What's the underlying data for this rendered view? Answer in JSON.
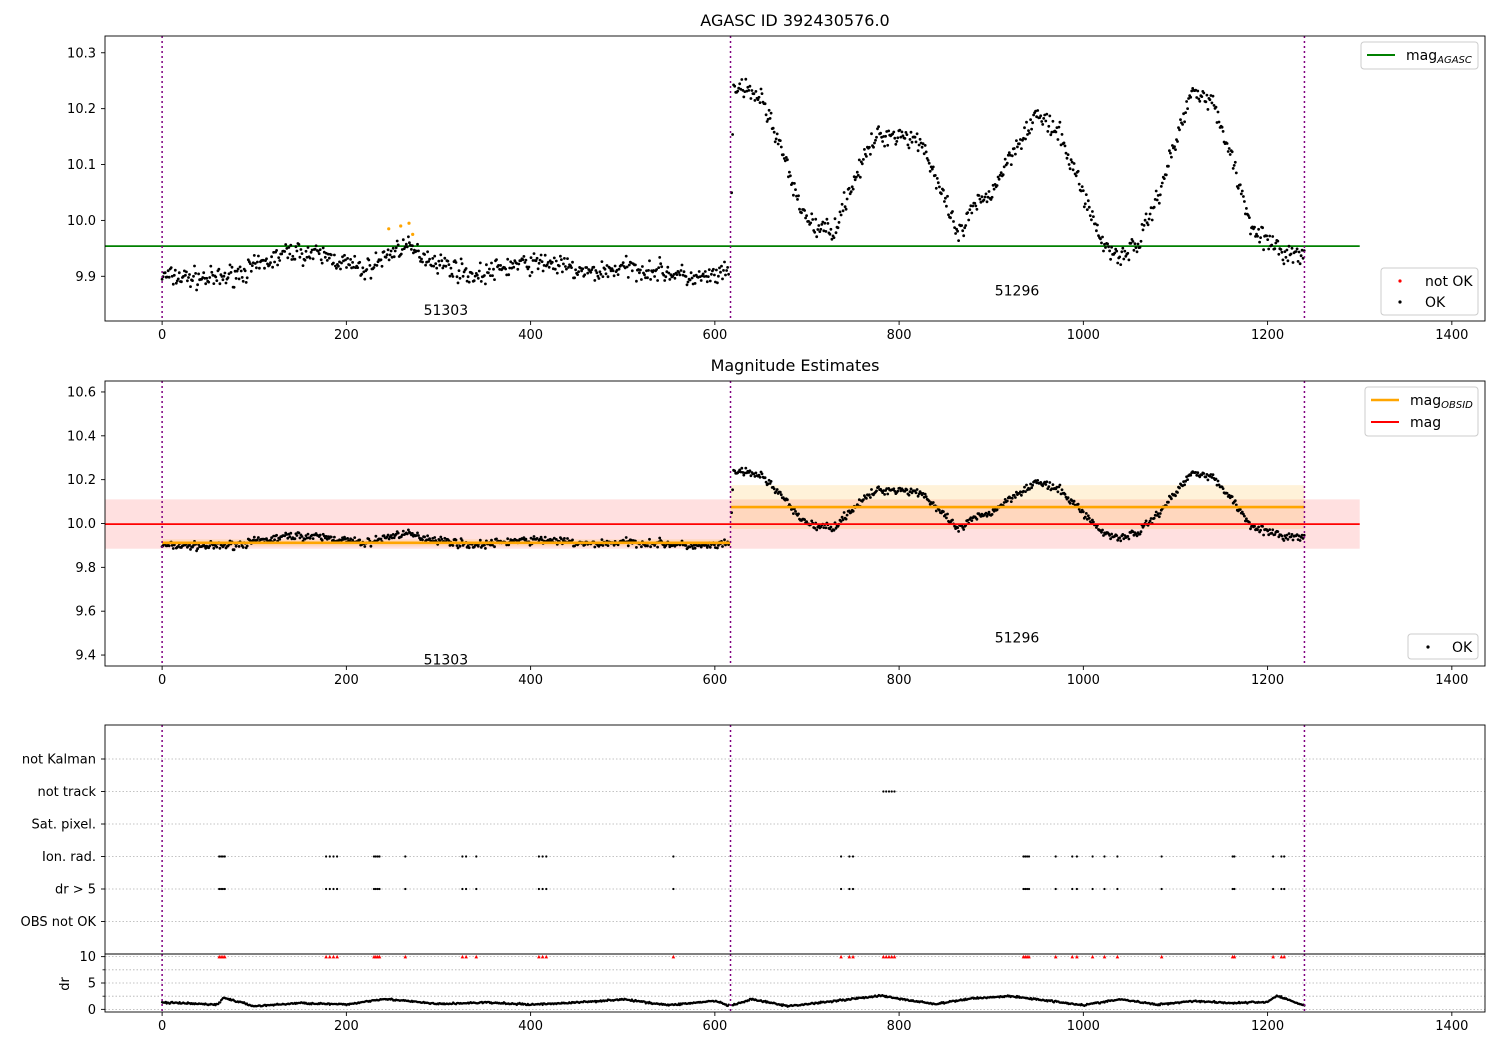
{
  "colors": {
    "ok": "#000000",
    "not_ok": "#ff0000",
    "mag_agasc": "#008000",
    "mag_obsid": "#ffa500",
    "mag": "#ff0000",
    "obs_boundary": "#800080",
    "grid": "#b0b0b0"
  },
  "chart_data": [
    {
      "type": "scatter",
      "title": "AGASC ID 392430576.0",
      "xlim": [
        -62,
        1436
      ],
      "ylim": [
        9.82,
        10.33
      ],
      "x_ticks": [
        0,
        200,
        400,
        600,
        800,
        1000,
        1200,
        1400
      ],
      "y_ticks": [
        9.9,
        10.0,
        10.1,
        10.2,
        10.3
      ],
      "grid": false,
      "legend_placement": "top-right and bottom-right",
      "legend": [
        "mag_AGASC",
        "not OK",
        "OK"
      ],
      "legend_entries": {
        "mag_agasc": {
          "main": "mag",
          "sub": "AGASC"
        },
        "not_ok": "not OK",
        "ok": "OK"
      },
      "observation_boundaries": [
        0,
        617,
        1240
      ],
      "observations": [
        {
          "obsid": "51303",
          "x_range": [
            0,
            617
          ]
        },
        {
          "obsid": "51296",
          "x_range": [
            617,
            1240
          ]
        }
      ],
      "mag_agasc": {
        "value": 9.954,
        "x_range": [
          -62,
          1300
        ]
      },
      "not_ok_points": [
        [
          246,
          9.985
        ],
        [
          259,
          9.99
        ],
        [
          268,
          9.995
        ],
        [
          272,
          9.975
        ]
      ],
      "ok_trend": [
        [
          0,
          9.9
        ],
        [
          60,
          9.895
        ],
        [
          100,
          9.915
        ],
        [
          140,
          9.945
        ],
        [
          180,
          9.935
        ],
        [
          220,
          9.91
        ],
        [
          260,
          9.955
        ],
        [
          300,
          9.925
        ],
        [
          340,
          9.9
        ],
        [
          380,
          9.92
        ],
        [
          420,
          9.925
        ],
        [
          460,
          9.905
        ],
        [
          500,
          9.915
        ],
        [
          540,
          9.91
        ],
        [
          580,
          9.895
        ],
        [
          617,
          9.905
        ],
        [
          620,
          10.24
        ],
        [
          650,
          10.22
        ],
        [
          670,
          10.14
        ],
        [
          690,
          10.03
        ],
        [
          710,
          9.985
        ],
        [
          730,
          9.985
        ],
        [
          750,
          10.07
        ],
        [
          775,
          10.15
        ],
        [
          800,
          10.155
        ],
        [
          825,
          10.14
        ],
        [
          850,
          10.03
        ],
        [
          865,
          9.97
        ],
        [
          880,
          10.02
        ],
        [
          900,
          10.05
        ],
        [
          925,
          10.13
        ],
        [
          950,
          10.19
        ],
        [
          975,
          10.15
        ],
        [
          1000,
          10.05
        ],
        [
          1020,
          9.96
        ],
        [
          1040,
          9.935
        ],
        [
          1060,
          9.96
        ],
        [
          1080,
          10.04
        ],
        [
          1100,
          10.14
        ],
        [
          1120,
          10.24
        ],
        [
          1140,
          10.21
        ],
        [
          1160,
          10.12
        ],
        [
          1180,
          10.0
        ],
        [
          1200,
          9.96
        ],
        [
          1220,
          9.94
        ],
        [
          1240,
          9.935
        ]
      ],
      "ok_scatter_amplitude": 0.025,
      "obs_labels": [
        {
          "text": "51303",
          "x": 308,
          "y": 9.84
        },
        {
          "text": "51296",
          "x": 928,
          "y": 9.875
        }
      ]
    },
    {
      "type": "scatter",
      "title": "Magnitude Estimates",
      "xlim": [
        -62,
        1436
      ],
      "ylim": [
        9.35,
        10.65
      ],
      "x_ticks": [
        0,
        200,
        400,
        600,
        800,
        1000,
        1200,
        1400
      ],
      "y_ticks": [
        9.4,
        9.6,
        9.8,
        10.0,
        10.2,
        10.4,
        10.6
      ],
      "grid": false,
      "legend_placement": "top-right and bottom-right",
      "legend": [
        "mag_OBSID",
        "mag",
        "OK"
      ],
      "legend_entries": {
        "mag_obsid": {
          "main": "mag",
          "sub": "OBSID"
        },
        "mag": "mag",
        "ok": "OK"
      },
      "mag": {
        "value": 9.997,
        "band": [
          9.885,
          10.11
        ],
        "x_range": [
          -62,
          1300
        ]
      },
      "mag_obsid": [
        {
          "x_range": [
            0,
            617
          ],
          "value": 9.912,
          "band": [
            9.895,
            9.928
          ]
        },
        {
          "x_range": [
            617,
            1240
          ],
          "value": 10.075,
          "band": [
            9.975,
            10.175
          ]
        }
      ],
      "obs_labels": [
        {
          "text": "51303",
          "x": 308,
          "y": 9.38
        },
        {
          "text": "51296",
          "x": 928,
          "y": 9.48
        }
      ]
    },
    {
      "type": "scatter",
      "xlim": [
        -62,
        1436
      ],
      "x_ticks": [
        0,
        200,
        400,
        600,
        800,
        1000,
        1200,
        1400
      ],
      "grid": true,
      "flag_rows": [
        "not Kalman",
        "not track",
        "Sat. pixel.",
        "Ion. rad.",
        "dr > 5",
        "OBS not OK"
      ],
      "flag_points": {
        "not Kalman": [],
        "not track": [
          783,
          786,
          789,
          792,
          795
        ],
        "Sat. pixel.": [],
        "Ion. rad.": [
          62,
          64,
          66,
          68,
          178,
          182,
          186,
          190,
          230,
          232,
          234,
          236,
          264,
          326,
          330,
          341,
          409,
          413,
          417,
          555,
          737,
          746,
          750,
          935,
          937,
          939,
          941,
          970,
          988,
          993,
          1010,
          1023,
          1037,
          1085,
          1162,
          1164,
          1206,
          1215,
          1218
        ],
        "dr > 5": [
          62,
          64,
          66,
          68,
          178,
          182,
          186,
          190,
          230,
          232,
          234,
          236,
          264,
          326,
          330,
          341,
          409,
          413,
          417,
          555,
          737,
          746,
          750,
          935,
          937,
          939,
          941,
          970,
          988,
          993,
          1010,
          1023,
          1037,
          1085,
          1162,
          1164,
          1206,
          1215,
          1218
        ],
        "OBS not OK": []
      },
      "dr": {
        "ylabel": "dr",
        "ylim": [
          -0.5,
          10.5
        ],
        "y_ticks": [
          0,
          5,
          10
        ],
        "threshold": 10,
        "clipped_x": [
          62,
          64,
          66,
          68,
          178,
          182,
          186,
          190,
          230,
          232,
          234,
          236,
          264,
          326,
          330,
          341,
          409,
          413,
          417,
          555,
          737,
          746,
          750,
          783,
          786,
          789,
          792,
          795,
          935,
          937,
          939,
          941,
          970,
          988,
          993,
          1010,
          1023,
          1037,
          1085,
          1162,
          1164,
          1206,
          1215,
          1218
        ],
        "trend": [
          [
            0,
            1.3
          ],
          [
            60,
            0.9
          ],
          [
            67,
            2.2
          ],
          [
            100,
            0.6
          ],
          [
            150,
            1.2
          ],
          [
            200,
            0.9
          ],
          [
            240,
            2.0
          ],
          [
            300,
            1.0
          ],
          [
            350,
            1.3
          ],
          [
            400,
            0.9
          ],
          [
            450,
            1.3
          ],
          [
            500,
            1.9
          ],
          [
            550,
            0.8
          ],
          [
            600,
            1.6
          ],
          [
            617,
            0.6
          ],
          [
            640,
            1.9
          ],
          [
            680,
            0.6
          ],
          [
            720,
            1.4
          ],
          [
            780,
            2.6
          ],
          [
            800,
            2.0
          ],
          [
            840,
            1.0
          ],
          [
            880,
            2.1
          ],
          [
            920,
            2.5
          ],
          [
            960,
            1.7
          ],
          [
            1000,
            0.8
          ],
          [
            1040,
            1.9
          ],
          [
            1080,
            0.9
          ],
          [
            1120,
            1.6
          ],
          [
            1160,
            1.2
          ],
          [
            1200,
            1.4
          ],
          [
            1210,
            2.6
          ],
          [
            1240,
            0.7
          ]
        ]
      }
    }
  ]
}
